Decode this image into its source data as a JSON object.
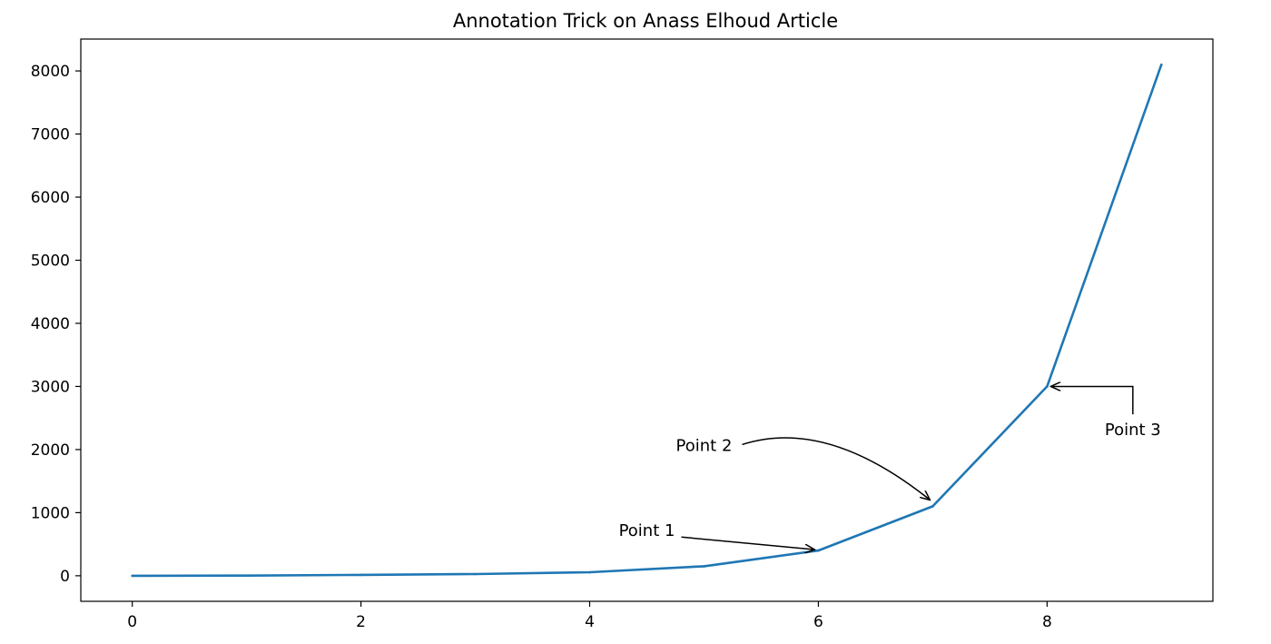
{
  "chart_data": {
    "type": "line",
    "title": "Annotation Trick on Anass Elhoud Article",
    "xlabel": "",
    "ylabel": "",
    "x": [
      0,
      1,
      2,
      3,
      4,
      5,
      6,
      7,
      8,
      9
    ],
    "series": [
      {
        "values": [
          0,
          3,
          14,
          27,
          55,
          150,
          400,
          1100,
          3000,
          8100
        ],
        "color": "#1f77b4"
      }
    ],
    "xlim": [
      -0.45,
      9.45
    ],
    "ylim": [
      -405,
      8505
    ],
    "xticks": [
      0,
      2,
      4,
      6,
      8
    ],
    "yticks": [
      0,
      1000,
      2000,
      3000,
      4000,
      5000,
      6000,
      7000,
      8000
    ],
    "xtick_labels": [
      "0",
      "2",
      "4",
      "6",
      "8"
    ],
    "ytick_labels": [
      "0",
      "1000",
      "2000",
      "3000",
      "4000",
      "5000",
      "6000",
      "7000",
      "8000"
    ],
    "grid": false,
    "annotations": [
      {
        "text": "Point 1",
        "target": [
          6,
          400
        ],
        "text_pos": [
          4.5,
          700
        ],
        "arrow": "straight"
      },
      {
        "text": "Point 2",
        "target": [
          7,
          1100
        ],
        "text_pos": [
          5.0,
          2050
        ],
        "arrow": "arc"
      },
      {
        "text": "Point 3",
        "target": [
          8,
          3000
        ],
        "text_pos": [
          8.75,
          2300
        ],
        "arrow": "angle"
      }
    ]
  }
}
